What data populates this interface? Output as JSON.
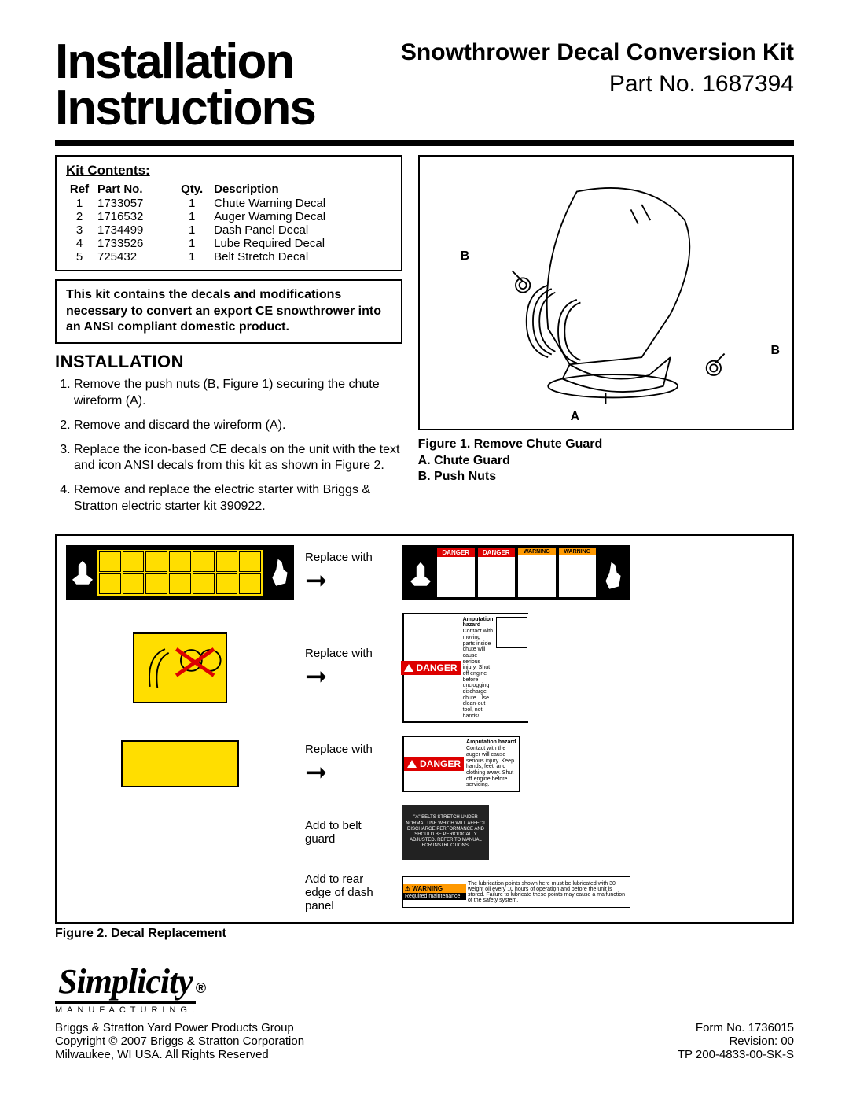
{
  "header": {
    "main_title_line1": "Installation",
    "main_title_line2": "Instructions",
    "product_title": "Snowthrower Decal Conversion Kit",
    "part_no": "Part No. 1687394"
  },
  "kit": {
    "title": "Kit Contents:",
    "columns": [
      "Ref",
      "Part No.",
      "Qty.",
      "Description"
    ],
    "rows": [
      [
        "1",
        "1733057",
        "1",
        "Chute Warning Decal"
      ],
      [
        "2",
        "1716532",
        "1",
        "Auger Warning Decal"
      ],
      [
        "3",
        "1734499",
        "1",
        "Dash Panel Decal"
      ],
      [
        "4",
        "1733526",
        "1",
        "Lube Required Decal"
      ],
      [
        "5",
        "725432",
        "1",
        "Belt Stretch Decal"
      ]
    ]
  },
  "note": "This kit contains the decals and modifications necessary to convert an export CE snowthrower into an ANSI compliant domestic product.",
  "installation": {
    "heading": "INSTALLATION",
    "steps": [
      "Remove the push nuts (B, Figure 1) securing the chute wireform (A).",
      "Remove and discard the wireform (A).",
      "Replace the icon-based CE decals on the unit with the text and icon ANSI decals from this kit as shown in Figure 2.",
      "Remove and replace the electric starter with Briggs & Stratton electric starter kit 390922."
    ]
  },
  "figure1": {
    "caption_line1": "Figure 1.  Remove Chute Guard",
    "caption_line2": "A.  Chute Guard",
    "caption_line3": "B.  Push Nuts",
    "callouts": {
      "A": "A",
      "B1": "B",
      "B2": "B"
    }
  },
  "figure2": {
    "rows": [
      {
        "label": "Replace with"
      },
      {
        "label": "Replace with"
      },
      {
        "label": "Replace with"
      },
      {
        "label": "Add to belt guard"
      },
      {
        "label": "Add to rear edge of dash panel"
      }
    ],
    "danger_label": "DANGER",
    "warning_label": "WARNING",
    "amputation": "Amputation hazard",
    "belt_text": "\"A\" BELTS STRETCH UNDER NORMAL USE WHICH WILL AFFECT DISCHARGE PERFORMANCE AND SHOULD BE PERIODICALLY ADJUSTED. REFER TO MANUAL FOR INSTRUCTIONS.",
    "maint_header": "WARNING",
    "maint_req": "Required maintenance",
    "caption": "Figure 2.  Decal Replacement"
  },
  "footer": {
    "brand": "Simplicity",
    "brand_sub": "MANUFACTURING.",
    "left_line1": "Briggs & Stratton Yard Power Products Group",
    "left_line2": "Copyright © 2007 Briggs & Stratton Corporation",
    "left_line3": "Milwaukee, WI USA.  All Rights Reserved",
    "right_line1": "Form No. 1736015",
    "right_line2": "Revision: 00",
    "right_line3": "TP 200-4833-00-SK-S"
  },
  "colors": {
    "yellow": "#ffde00",
    "red": "#d00000",
    "orange": "#ff9900",
    "black": "#000000"
  }
}
